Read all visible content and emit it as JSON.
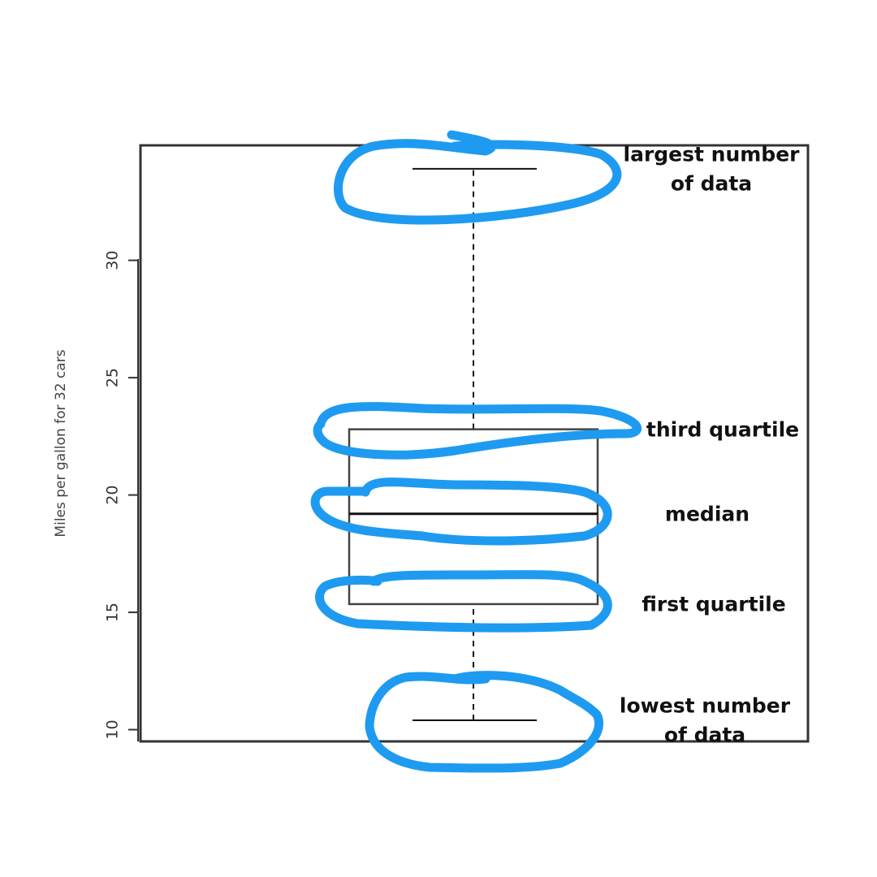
{
  "chart_data": {
    "type": "box",
    "ylabel": "Miles per gallon for 32 cars",
    "ylim": [
      9.5,
      34.9
    ],
    "yticks": [
      10,
      15,
      20,
      25,
      30
    ],
    "box": {
      "min": 10.4,
      "q1": 15.35,
      "median": 19.2,
      "q3": 22.8,
      "max": 33.9
    },
    "annotations": [
      {
        "stat": "max",
        "lines": [
          "largest number",
          "of data"
        ]
      },
      {
        "stat": "q3",
        "lines": [
          "third quartile"
        ]
      },
      {
        "stat": "median",
        "lines": [
          "median"
        ]
      },
      {
        "stat": "q1",
        "lines": [
          "first quartile"
        ]
      },
      {
        "stat": "min",
        "lines": [
          "lowest number",
          "of data"
        ]
      }
    ],
    "highlight_color": "#1e9bf0"
  }
}
